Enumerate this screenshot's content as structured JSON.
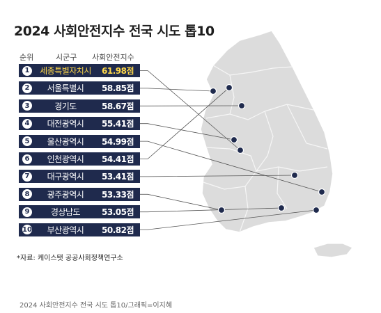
{
  "title": "2024 사회안전지수 전국 시도 톱10",
  "headers": {
    "rank": "순위",
    "region": "시군구",
    "score": "사회안전지수"
  },
  "colors": {
    "bar": "#1f2a4d",
    "highlight": "#ffd84a",
    "map": "#dcdcdc",
    "dot": "#1f2a4d"
  },
  "chart_data": {
    "type": "table",
    "columns": [
      "순위",
      "시군구",
      "사회안전지수"
    ],
    "rows": [
      {
        "rank": "1",
        "region": "세종특별자치시",
        "score": "61.98점",
        "value": 61.98
      },
      {
        "rank": "2",
        "region": "서울특별시",
        "score": "58.85점",
        "value": 58.85
      },
      {
        "rank": "3",
        "region": "경기도",
        "score": "58.67점",
        "value": 58.67
      },
      {
        "rank": "4",
        "region": "대전광역시",
        "score": "55.41점",
        "value": 55.41
      },
      {
        "rank": "5",
        "region": "울산광역시",
        "score": "54.99점",
        "value": 54.99
      },
      {
        "rank": "6",
        "region": "인천광역시",
        "score": "54.41점",
        "value": 54.41
      },
      {
        "rank": "7",
        "region": "대구광역시",
        "score": "53.41점",
        "value": 53.41
      },
      {
        "rank": "8",
        "region": "광주광역시",
        "score": "53.33점",
        "value": 53.33
      },
      {
        "rank": "9",
        "region": "경상남도",
        "score": "53.05점",
        "value": 53.05
      },
      {
        "rank": "10",
        "region": "부산광역시",
        "score": "50.82점",
        "value": 50.82
      }
    ]
  },
  "source": "*자료: 케이스탯 공공사회정책연구소",
  "credit": "2024 사회안전지수 전국 시도 톱10/그래픽=이지혜"
}
